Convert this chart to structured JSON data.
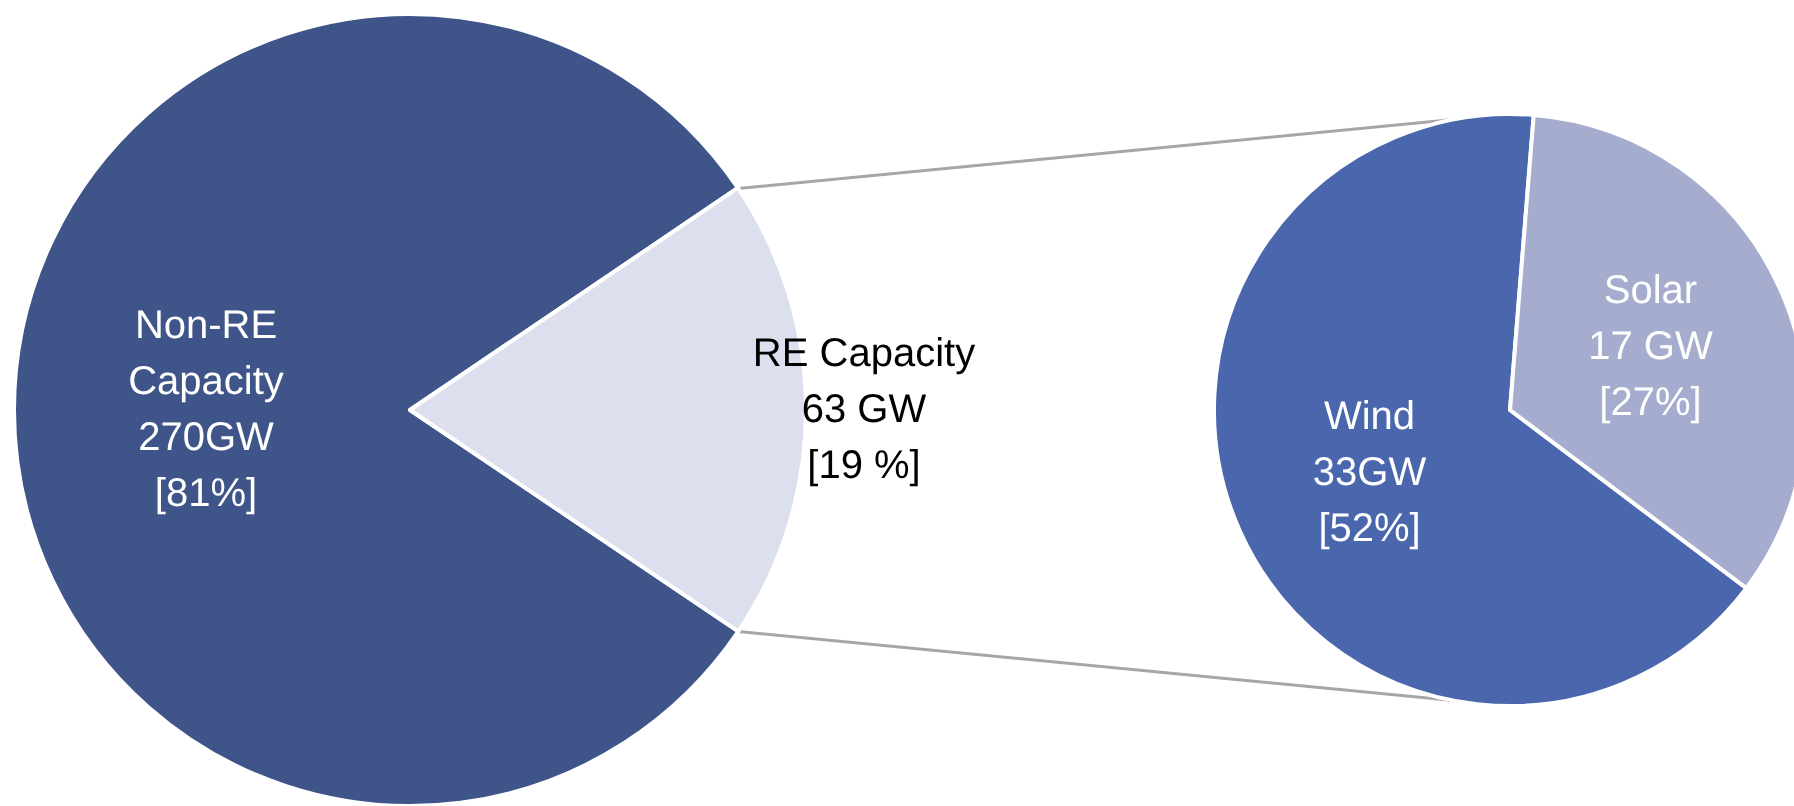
{
  "chart_data": [
    {
      "type": "pie",
      "categories": [
        "Non-RE\nCapacity",
        "RE Capacity"
      ],
      "values": [
        270,
        63
      ],
      "value_labels": [
        "270GW\n[81%]",
        "63 GW\n[19 %]"
      ],
      "colors": [
        "#3f5489",
        "#dcdfee"
      ]
    },
    {
      "type": "pie",
      "categories": [
        "Wind",
        "Solar"
      ],
      "values": [
        33,
        17
      ],
      "value_labels": [
        "33GW\n[52%]",
        "17 GW\n[27%]"
      ],
      "colors": [
        "#4a66ac",
        "#a5acce"
      ]
    }
  ]
}
